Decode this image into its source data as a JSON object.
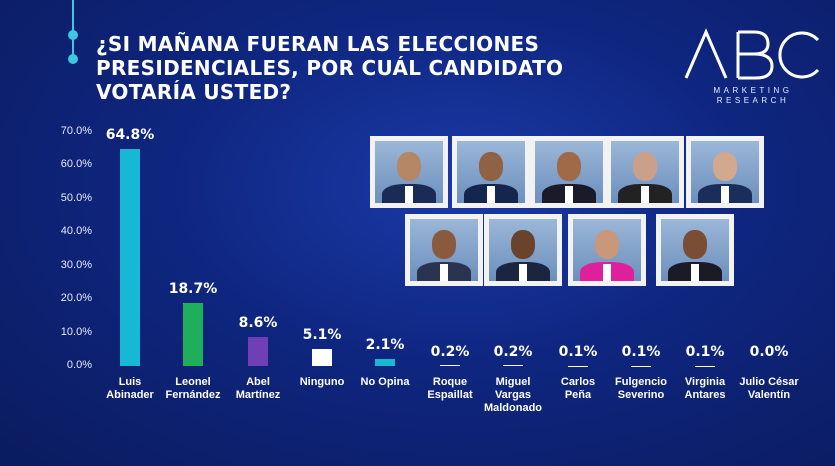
{
  "title": "¿SI MAÑANA FUERAN LAS ELECCIONES\nPRESIDENCIALES, POR  CUÁL CANDIDATO\nVOTARÍA USTED?",
  "logo": {
    "main": "ABC",
    "sub": "MARKETING\nRESEARCH"
  },
  "colors": {
    "background": "#0f2680",
    "bar1": "#16b8d6",
    "bar2": "#1fae5a",
    "bar3": "#6f3fb5",
    "bar_other": "#ffffff"
  },
  "chart_data": {
    "type": "bar",
    "title": "¿SI MAÑANA FUERAN LAS ELECCIONES PRESIDENCIALES, POR  CUÁL CANDIDATO VOTARÍA USTED?",
    "categories": [
      "Luis\nAbinader",
      "Leonel\nFernández",
      "Abel\nMartínez",
      "Ninguno",
      "No Opina",
      "Roque\nEspaillat",
      "Miguel\nVargas\nMaldonado",
      "Carlos\nPeña",
      "Fulgencio\nSeverino",
      "Virginia\nAntares",
      "Julio César\nValentín"
    ],
    "values": [
      64.8,
      18.7,
      8.6,
      5.1,
      2.1,
      0.2,
      0.2,
      0.1,
      0.1,
      0.1,
      0.0
    ],
    "labels": [
      "64.8%",
      "18.7%",
      "8.6%",
      "5.1%",
      "2.1%",
      "0.2%",
      "0.2%",
      "0.1%",
      "0.1%",
      "0.1%",
      "0.0%"
    ],
    "bar_colors": [
      "#16b8d6",
      "#1fae5a",
      "#6f3fb5",
      "#ffffff",
      "#16b8d6",
      "#ffffff",
      "#ffffff",
      "#ffffff",
      "#ffffff",
      "#ffffff",
      "#ffffff"
    ],
    "yticks": [
      "0.0%",
      "10.0%",
      "20.0%",
      "30.0%",
      "40.0%",
      "50.0%",
      "60.0%",
      "70.0%"
    ],
    "ylim": [
      0,
      70
    ],
    "grid": false,
    "legend": "none"
  }
}
